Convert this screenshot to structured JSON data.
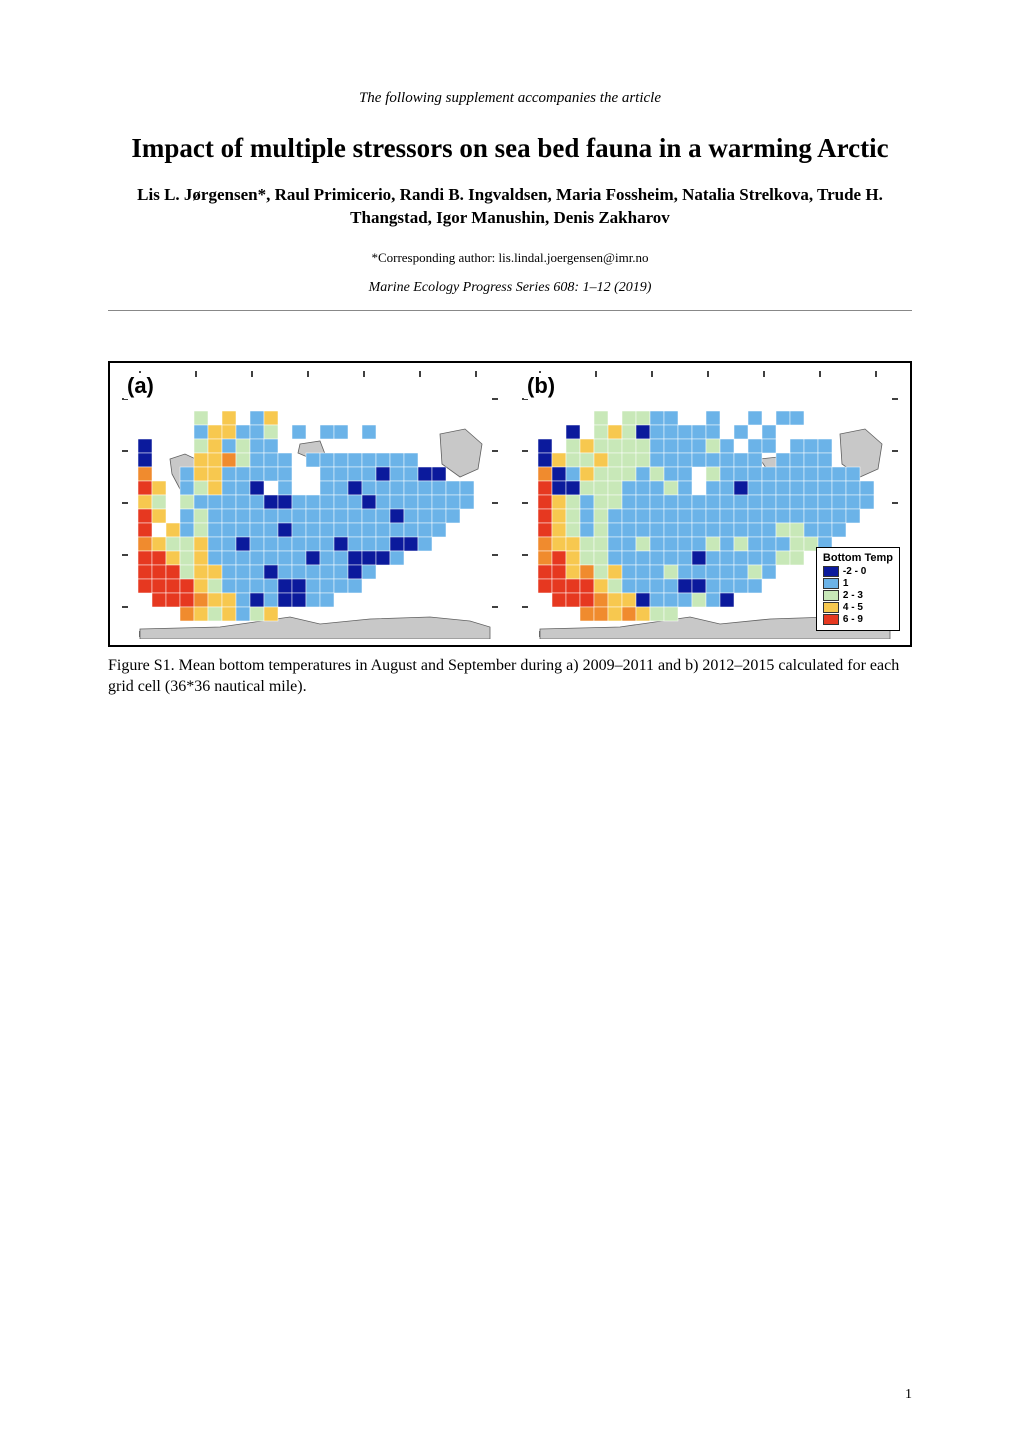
{
  "supplement_note": "The following supplement accompanies the article",
  "title": "Impact of multiple stressors on sea bed fauna in a warming Arctic",
  "authors": "Lis L. Jørgensen*, Raul Primicerio, Randi B. Ingvaldsen, Maria Fossheim, Natalia Strelkova, Trude H. Thangstad, Igor Manushin, Denis Zakharov",
  "corresponding": "*Corresponding author: lis.lindal.joergensen@imr.no",
  "journal": "Marine Ecology Progress Series 608: 1–12 (2019)",
  "figure": {
    "panel_a_label": "(a)",
    "panel_b_label": "(b)",
    "legend_title": "Bottom Temp",
    "legend_items": [
      {
        "color": "#0b1a9c",
        "label": "-2 - 0"
      },
      {
        "color": "#6bb3e8",
        "label": "1"
      },
      {
        "color": "#c8e8b8",
        "label": "2 - 3"
      },
      {
        "color": "#f7c84f",
        "label": "4 - 5"
      },
      {
        "color": "#e63820",
        "label": "6 - 9"
      }
    ],
    "colors": {
      "deep_blue": "#0b1a9c",
      "light_blue": "#6bb3e8",
      "light_green": "#c8e8b8",
      "yellow": "#f7c84f",
      "orange": "#f08b2e",
      "red": "#e63820",
      "land": "#c8c8c8",
      "coast": "#606060",
      "border": "#000000"
    },
    "grid_a": [
      "........................",
      "....g.y.by..............",
      "....byybbg.b.bb.b.......",
      "d...gybgbb..............",
      "d...yyogbbb.bbbbbbbb....",
      "o..byybbbbb..bbbbdbbdd..",
      "ry.bgybbd.b..bbdbbbbbbbb",
      "yg.gbbbbbddbbbbbdbbbbbbb",
      "ry.bgbbbbbbbbbbbbbdbbbb.",
      "r.ybgbbbbbdbbbbbbbbbbb..",
      "oyggybbdbbbbbbdbbbddb...",
      "rrygybbbbbbbdbbdddb.....",
      "rrrgyybbbdbbbbbdb.......",
      "rrrrygbbbbddbbbb........",
      ".rrroyybdbddbb..........",
      "...oygybgy.............."
    ],
    "grid_b": [
      "........................",
      "....g.ggbb..b..b.bb.....",
      "..d.gygdbbbbb.b.b.......",
      "d.gyggggbbbbgb.bb.bbb...",
      "dyggygggbbbbbbbb.bbbb...",
      "odbygggbgbb.gbbbbbbbbbb.",
      "rddgggbbbgb.bbdbbbbbbbbb",
      "rygbggbbbbbbbbbbbbbbbbbb",
      "rygbgbbbbbbbbbbbbbbbbbb.",
      "rygbgbbbbbbbbbbbbggbbb..",
      "oyyggbbgbbbbgbgbbbggb...",
      "oryggbbbbbbdbbbbbgg.....",
      "rryogybbbgbbbbbgb.......",
      "rrrrygbbbbddbbbb........",
      ".rrroyydbbbgbd..........",
      "...ooyoygg.............."
    ],
    "cell_size": 14,
    "grid_cols": 24,
    "grid_rows": 16,
    "land_paths": [
      "M 20 260 L 100 258 L 170 248 L 200 255 L 250 250 L 310 248 L 350 252 L 370 258 L 370 270 L 20 270 Z",
      "M 50 90 L 65 85 L 80 92 L 88 110 L 78 125 L 60 120 L 52 105 Z",
      "M 320 65 L 345 60 L 362 75 L 358 100 L 340 108 L 322 95 Z",
      "M 180 75 L 200 72 L 205 85 L 192 90 L 178 84 Z",
      "M 240 90 L 258 88 L 262 98 L 248 102 Z"
    ]
  },
  "caption": "Figure S1. Mean bottom temperatures in August and September during a) 2009–2011 and b) 2012–2015 calculated for each grid cell (36*36 nautical mile).",
  "page_number": "1"
}
